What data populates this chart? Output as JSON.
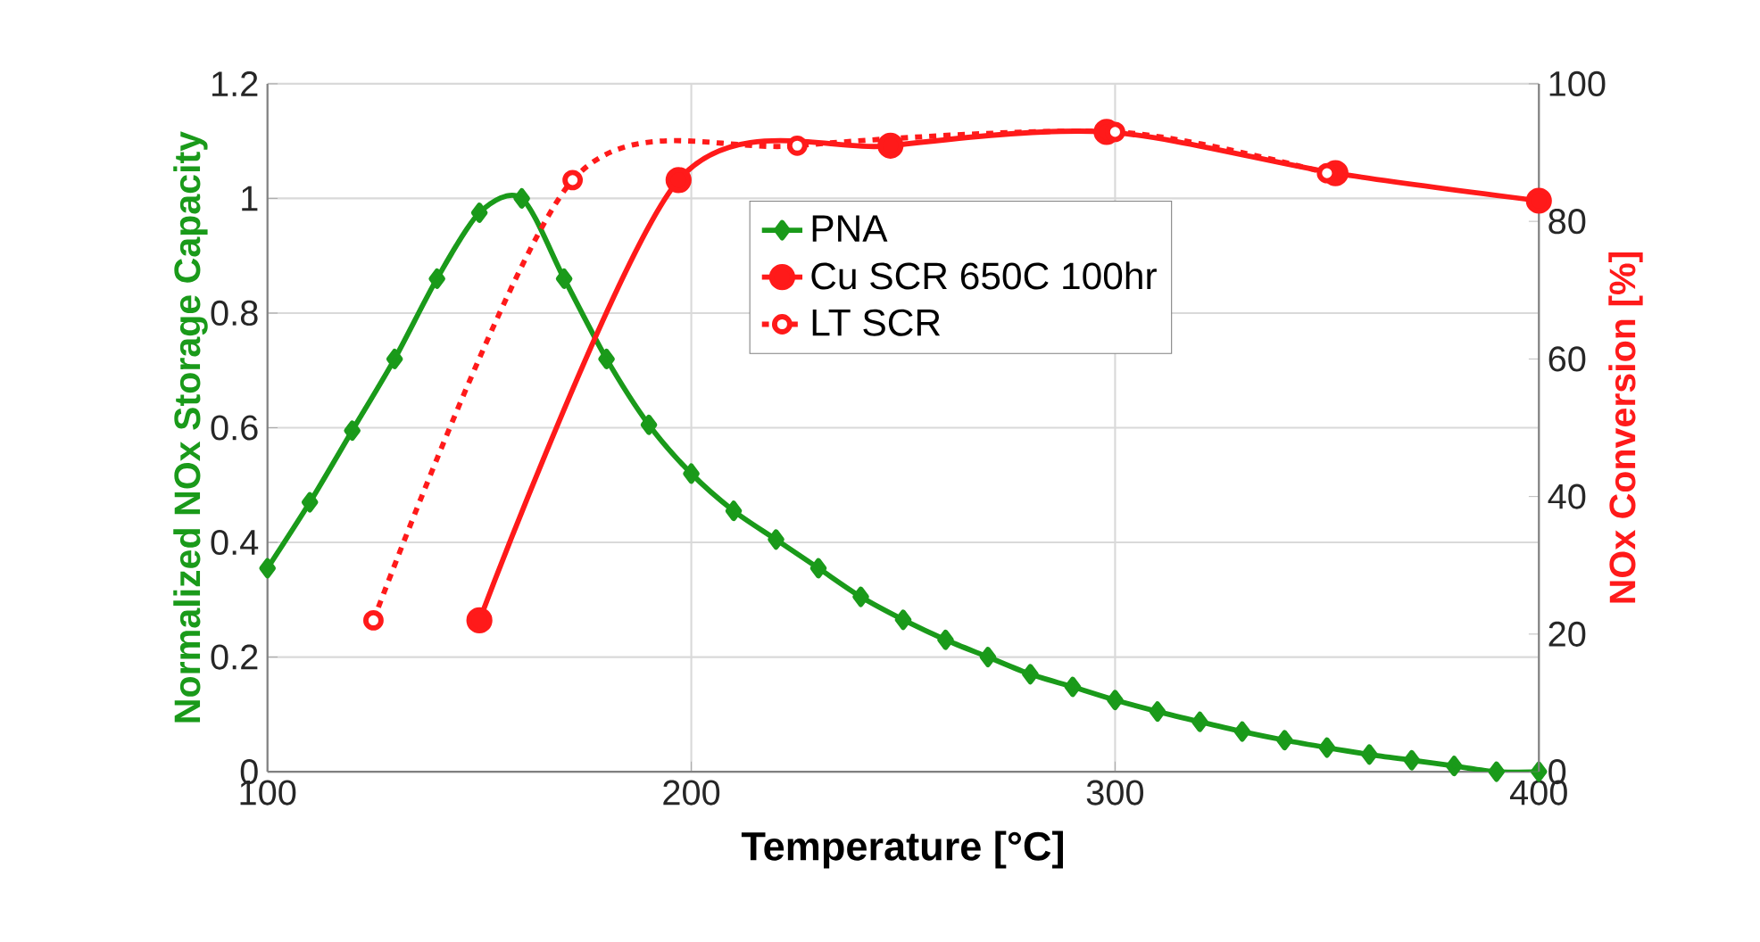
{
  "chart_data": {
    "type": "line",
    "xlabel": "Temperature [°C]",
    "ylabel": "Normalized NOx Storage Capacity",
    "y2label": "NOx Conversion [%]",
    "xlim": [
      100,
      400
    ],
    "xticks": [
      100,
      200,
      300,
      400
    ],
    "ylim": [
      0,
      1.2
    ],
    "yticks": [
      0,
      0.2,
      0.4,
      0.6,
      0.8,
      1,
      1.2
    ],
    "y2lim": [
      0,
      100
    ],
    "y2ticks": [
      0,
      20,
      40,
      60,
      80,
      100
    ],
    "grid": true,
    "legend": "right",
    "series": [
      {
        "name": "PNA",
        "color": "#1a9a1a",
        "marker": "diamond",
        "line_style": "solid",
        "x": [
          100,
          110,
          120,
          130,
          140,
          150,
          160,
          170,
          180,
          190,
          200,
          210,
          220,
          230,
          240,
          250,
          260,
          270,
          280,
          290,
          300,
          310,
          320,
          330,
          340,
          350,
          360,
          370,
          380,
          390,
          400
        ],
        "values": [
          0.355,
          0.47,
          0.595,
          0.72,
          0.86,
          0.975,
          1.0,
          0.86,
          0.72,
          0.605,
          0.52,
          0.455,
          0.405,
          0.355,
          0.305,
          0.265,
          0.23,
          0.2,
          0.17,
          0.148,
          0.125,
          0.105,
          0.087,
          0.07,
          0.055,
          0.042,
          0.03,
          0.02,
          0.01,
          0.0,
          0.0
        ]
      },
      {
        "name": "Cu SCR 650C 100hr",
        "color": "#ff1a1a",
        "marker": "circle",
        "line_style": "solid",
        "axis": "y2",
        "x": [
          150,
          197,
          247,
          298,
          352,
          400
        ],
        "values": [
          22,
          86,
          91,
          93,
          87,
          83
        ]
      },
      {
        "name": "LT SCR",
        "color": "#ff1a1a",
        "marker": "circle",
        "line_style": "dashed",
        "axis": "y2",
        "x": [
          125,
          172,
          225,
          300,
          350
        ],
        "values": [
          22,
          86,
          91,
          93,
          87
        ]
      }
    ]
  }
}
